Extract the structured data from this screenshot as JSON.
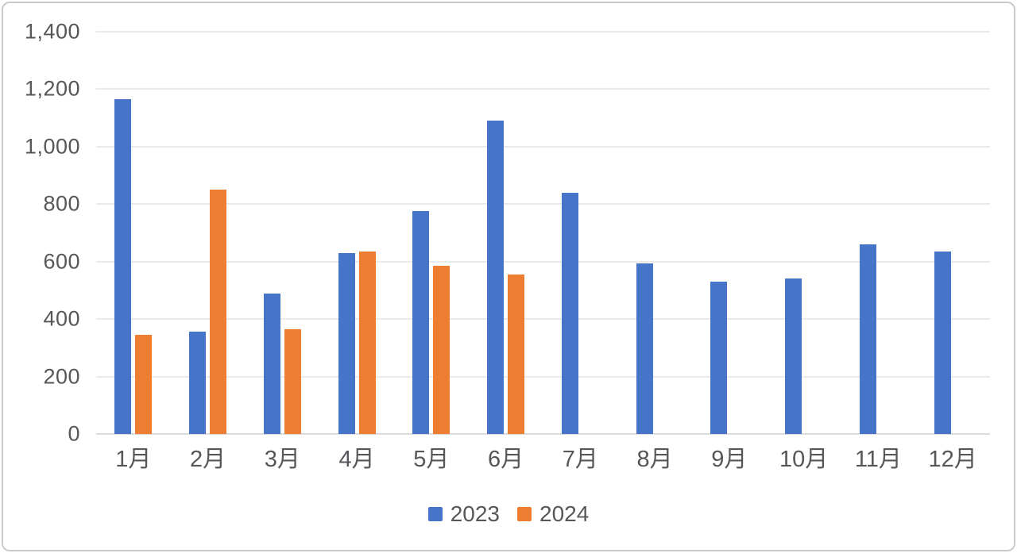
{
  "window": {
    "background_color": "#ffffff",
    "card_border_color": "#c7ccc9"
  },
  "chart_data": {
    "type": "bar",
    "title": "",
    "xlabel": "",
    "ylabel": "",
    "categories": [
      "1月",
      "2月",
      "3月",
      "4月",
      "5月",
      "6月",
      "7月",
      "8月",
      "9月",
      "10月",
      "11月",
      "12月"
    ],
    "series": [
      {
        "name": "2023",
        "color": "#4674C8",
        "values": [
          1165,
          355,
          490,
          630,
          775,
          1090,
          840,
          595,
          530,
          540,
          660,
          635
        ]
      },
      {
        "name": "2024",
        "color": "#ED7D31",
        "values": [
          345,
          850,
          365,
          635,
          585,
          555,
          null,
          null,
          null,
          null,
          null,
          null
        ]
      }
    ],
    "ylim": [
      0,
      1400
    ],
    "ytick_step": 200,
    "yticks": [
      {
        "value": 0,
        "label": "0"
      },
      {
        "value": 200,
        "label": "200"
      },
      {
        "value": 400,
        "label": "400"
      },
      {
        "value": 600,
        "label": "600"
      },
      {
        "value": 800,
        "label": "800"
      },
      {
        "value": 1000,
        "label": "1,000"
      },
      {
        "value": 1200,
        "label": "1,200"
      },
      {
        "value": 1400,
        "label": "1,400"
      }
    ],
    "grid": true,
    "legend_position": "bottom",
    "axis_text_color": "#56575a",
    "gridline_color": "#eaeaea"
  }
}
